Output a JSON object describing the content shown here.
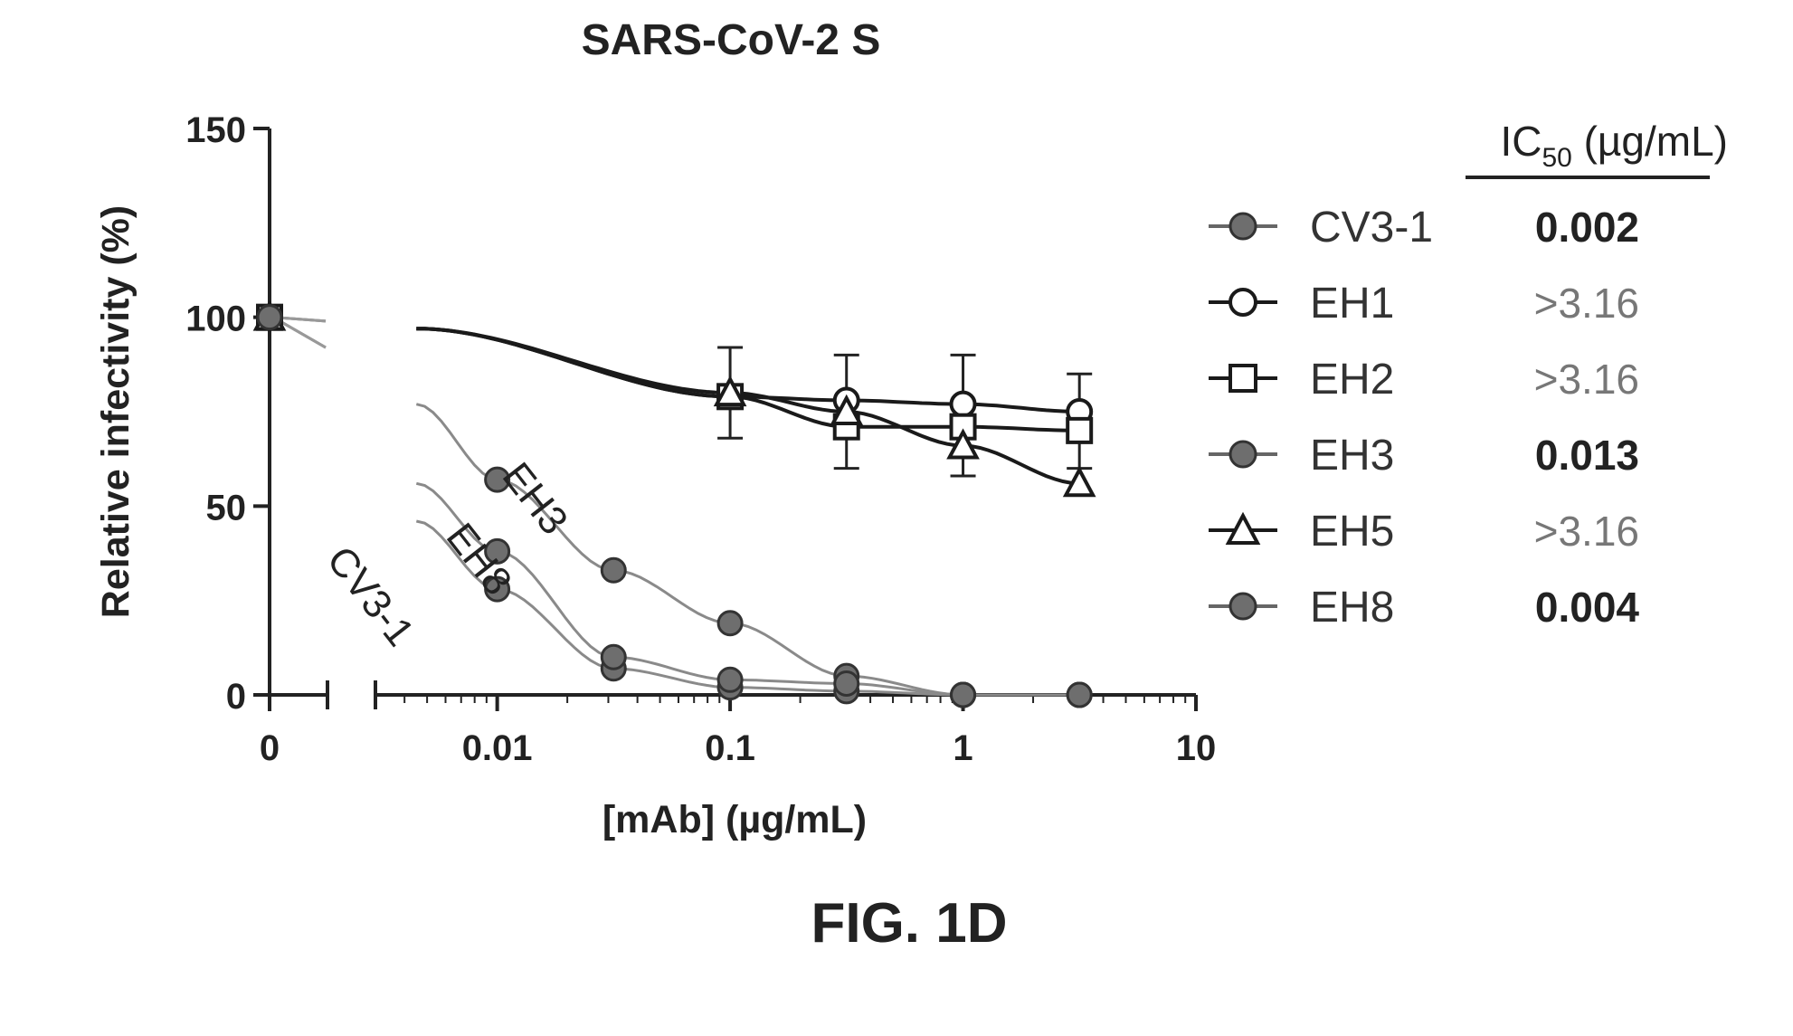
{
  "figure_label": "FIG. 1D",
  "chart_data": {
    "type": "scatter",
    "title": "SARS-CoV-2 S",
    "xlabel": "[mAb] (µg/mL)",
    "ylabel": "Relative infectivity (%)",
    "xscale": "log",
    "xlim": [
      0.003,
      10
    ],
    "ylim": [
      0,
      150
    ],
    "x_ticks": [
      "0",
      "0.01",
      "0.1",
      "1",
      "10"
    ],
    "y_ticks": [
      "0",
      "50",
      "100",
      "150"
    ],
    "grid": false,
    "legend_position": "right",
    "legend_header": "IC50 (µg/mL)",
    "x": [
      0,
      0.01,
      0.0316,
      0.1,
      0.316,
      1,
      3.16
    ],
    "series": [
      {
        "name": "CV3-1",
        "ic50": "0.002",
        "marker": "circle-filled",
        "color": "#6e6e6e",
        "values": [
          100,
          28,
          7,
          2,
          1,
          0,
          0
        ]
      },
      {
        "name": "EH1",
        "ic50": ">3.16",
        "marker": "circle-open",
        "color": "#1a1a1a",
        "values": [
          100,
          null,
          null,
          79,
          78,
          77,
          75
        ]
      },
      {
        "name": "EH2",
        "ic50": ">3.16",
        "marker": "square-open",
        "color": "#1a1a1a",
        "values": [
          100,
          null,
          null,
          79,
          71,
          71,
          70
        ]
      },
      {
        "name": "EH3",
        "ic50": "0.013",
        "marker": "circle-filled",
        "color": "#6e6e6e",
        "values": [
          100,
          57,
          33,
          19,
          5,
          0,
          0
        ]
      },
      {
        "name": "EH5",
        "ic50": ">3.16",
        "marker": "triangle-open",
        "color": "#1a1a1a",
        "values": [
          100,
          null,
          null,
          80,
          75,
          66,
          56
        ]
      },
      {
        "name": "EH8",
        "ic50": "0.004",
        "marker": "circle-filled",
        "color": "#6e6e6e",
        "values": [
          100,
          38,
          10,
          4,
          3,
          0,
          0
        ]
      }
    ],
    "curve_labels": [
      "EH3",
      "EH8",
      "CV3-1"
    ]
  }
}
